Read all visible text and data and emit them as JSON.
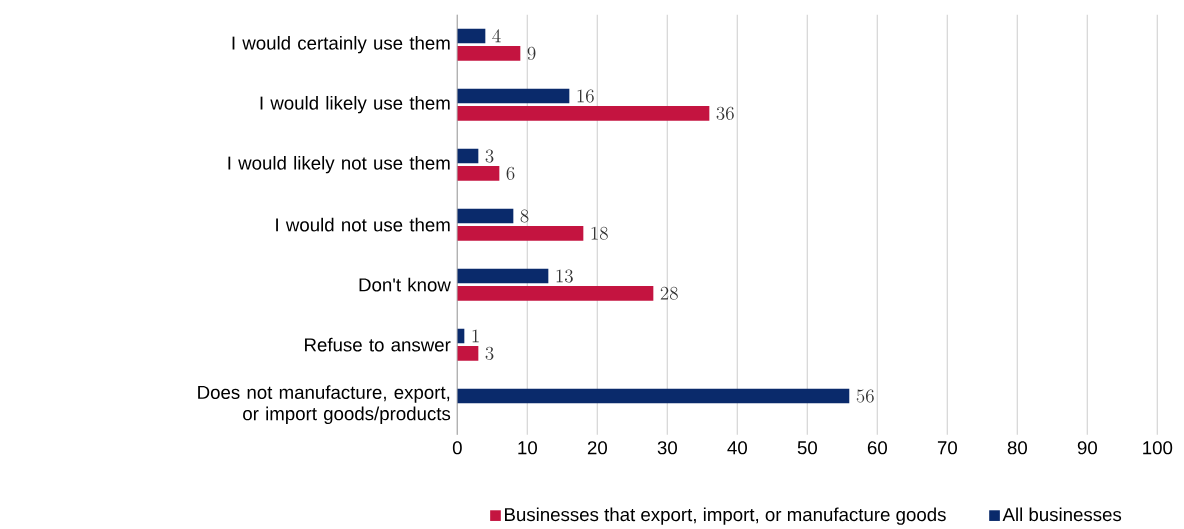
{
  "chart_data": {
    "type": "bar",
    "orientation": "horizontal",
    "categories": [
      "I would certainly use them",
      "I would likely use them",
      "I would likely not use them",
      "I would not use them",
      "Don't know",
      "Refuse to answer",
      "Does not manufacture, export, or import goods/products"
    ],
    "series": [
      {
        "name": "Businesses that export, import, or manufacture goods",
        "color": "#c41440",
        "values": [
          9,
          36,
          6,
          18,
          28,
          3,
          null
        ]
      },
      {
        "name": "All businesses",
        "color": "#0a2a6b",
        "values": [
          4,
          16,
          3,
          8,
          13,
          1,
          56
        ]
      }
    ],
    "xlim": [
      0,
      100
    ],
    "xticks": [
      0,
      10,
      20,
      30,
      40,
      50,
      60,
      70,
      80,
      90,
      100
    ],
    "grid": "x",
    "legend": "bottom",
    "data_labels": true
  }
}
